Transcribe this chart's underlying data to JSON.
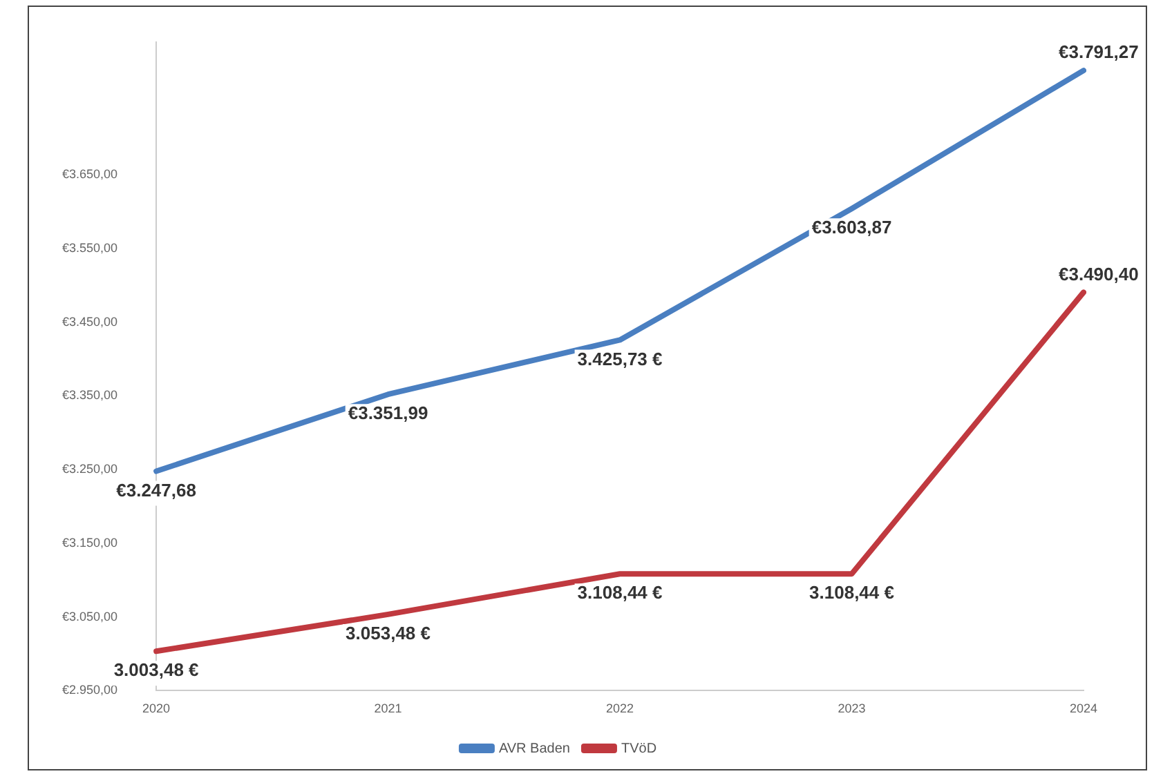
{
  "chart_data": {
    "type": "line",
    "categories": [
      "2020",
      "2021",
      "2022",
      "2023",
      "2024"
    ],
    "series": [
      {
        "name": "AVR Baden",
        "color": "#4a7fc1",
        "values": [
          3247.68,
          3351.99,
          3425.73,
          3603.87,
          3791.27
        ],
        "value_labels": [
          "€3.247,68",
          "€3.351,99",
          "3.425,73 €",
          "€3.603,87",
          "€3.791,27"
        ]
      },
      {
        "name": "TVöD",
        "color": "#c0393f",
        "values": [
          3003.48,
          3053.48,
          3108.44,
          3108.44,
          3490.4
        ],
        "value_labels": [
          "3.003,48 €",
          "3.053,48 €",
          "3.108,44 €",
          "3.108,44 €",
          "€3.490,40"
        ]
      }
    ],
    "ylim": [
      2950,
      3830
    ],
    "yticks": [
      {
        "value": 2950,
        "label": "€2.950,00"
      },
      {
        "value": 3050,
        "label": "€3.050,00"
      },
      {
        "value": 3150,
        "label": "€3.150,00"
      },
      {
        "value": 3250,
        "label": "€3.250,00"
      },
      {
        "value": 3350,
        "label": "€3.350,00"
      },
      {
        "value": 3450,
        "label": "€3.450,00"
      },
      {
        "value": 3550,
        "label": "€3.550,00"
      },
      {
        "value": 3650,
        "label": "€3.650,00"
      }
    ],
    "grid": false,
    "legend": "bottom",
    "marker": "none",
    "line_style": "solid"
  }
}
